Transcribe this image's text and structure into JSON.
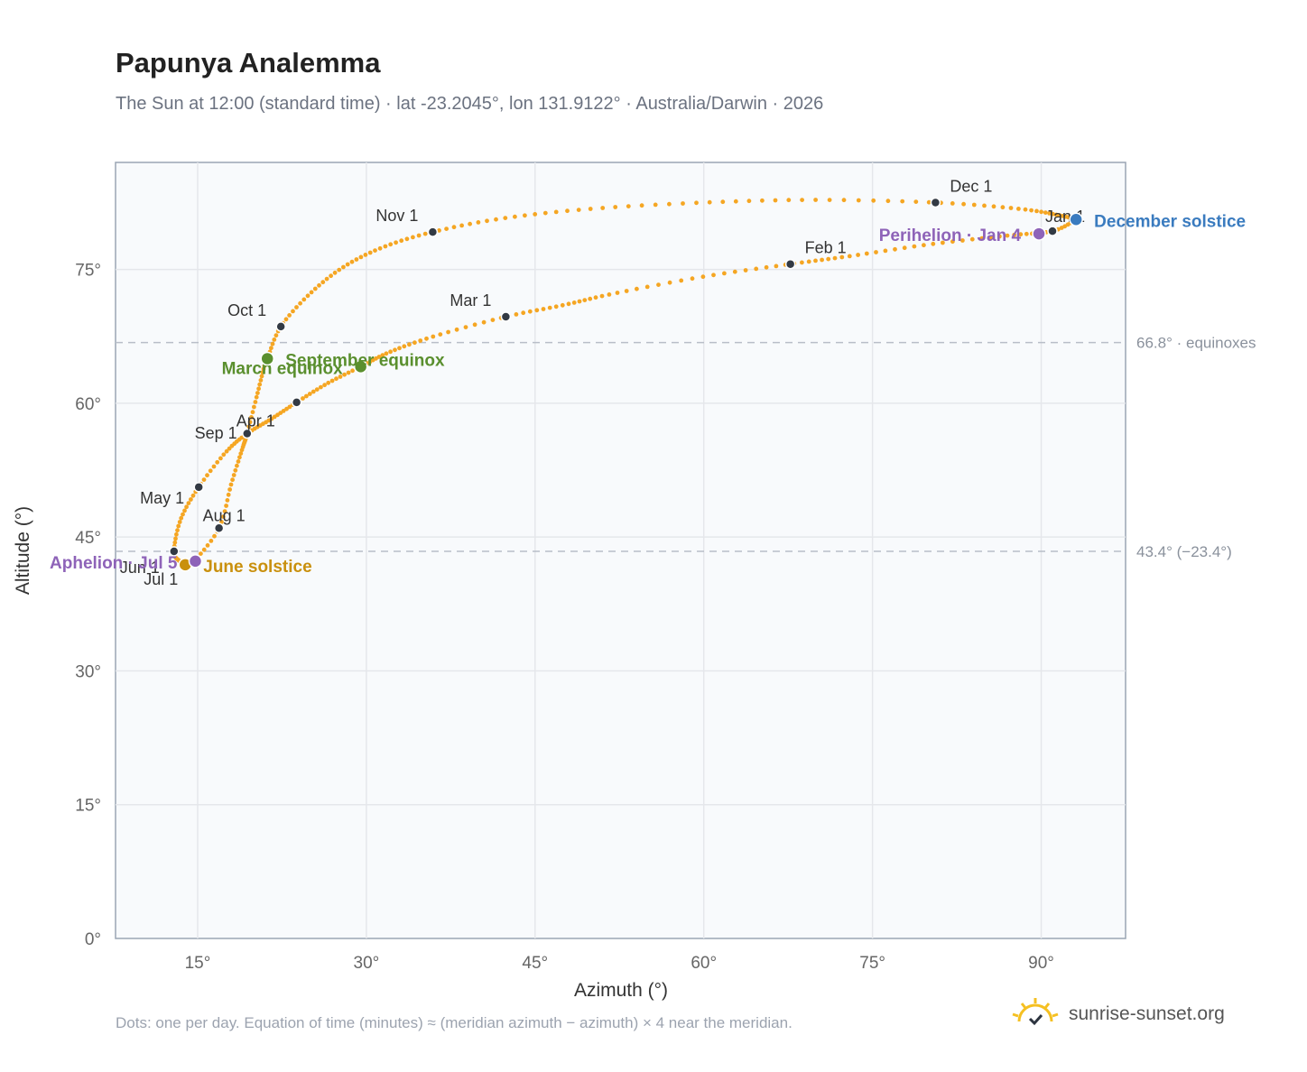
{
  "title": "Papunya Analemma",
  "subtitle": "The Sun at 12:00 (standard time) · lat -23.2045°, lon 131.9122° · Australia/Darwin · 2026",
  "footnote": "Dots: one per day. Equation of time (minutes) ≈ (meridian azimuth − azimuth) × 4 near the meridian.",
  "brand": {
    "name": "sunrise-sunset.org",
    "icon": "sun-logo-icon"
  },
  "colors": {
    "curve": "#f5a623",
    "month_marker": "#333a44",
    "equinox": "#5a8f2e",
    "june_solstice": "#c9900e",
    "december_solstice": "#3a7bbf",
    "aphelion_perihelion": "#8e63b8",
    "reference_line": "#b8bec8",
    "plot_bg": "#f8fafc",
    "grid": "#e5e7eb"
  },
  "chart_data": {
    "type": "scatter",
    "title": "Papunya Analemma",
    "xlabel": "Azimuth (°)",
    "ylabel": "Altitude (°)",
    "xlim": [
      7.7,
      97.5
    ],
    "ylim": [
      0,
      87
    ],
    "xticks": [
      15,
      30,
      45,
      60,
      75,
      90
    ],
    "xtick_labels": [
      "15°",
      "30°",
      "45°",
      "60°",
      "75°",
      "90°"
    ],
    "yticks": [
      0,
      15,
      30,
      45,
      60,
      75
    ],
    "ytick_labels": [
      "0°",
      "15°",
      "30°",
      "45°",
      "60°",
      "75°"
    ],
    "grid": true,
    "series": [
      {
        "type": "line",
        "note": "one dot per day",
        "points": [
          [
            93.1,
            80.6
          ],
          [
            91.0,
            79.3
          ],
          [
            87.0,
            78.8
          ],
          [
            80.0,
            77.8
          ],
          [
            73.0,
            76.5
          ],
          [
            67.7,
            75.6
          ],
          [
            60.0,
            74.2
          ],
          [
            52.0,
            72.3
          ],
          [
            47.5,
            71.0
          ],
          [
            42.4,
            69.7
          ],
          [
            36.0,
            67.5
          ],
          [
            32.0,
            65.7
          ],
          [
            29.5,
            64.1
          ],
          [
            26.5,
            62.2
          ],
          [
            23.8,
            60.1
          ],
          [
            21.5,
            58.2
          ],
          [
            19.4,
            56.6
          ],
          [
            17.5,
            54.5
          ],
          [
            15.1,
            50.6
          ],
          [
            13.5,
            47.0
          ],
          [
            12.9,
            43.4
          ],
          [
            13.4,
            42.3
          ],
          [
            13.9,
            41.9
          ],
          [
            14.6,
            42.2
          ],
          [
            16.9,
            46.0
          ],
          [
            18.0,
            51.0
          ],
          [
            19.0,
            55.0
          ],
          [
            19.4,
            56.6
          ],
          [
            20.3,
            61.0
          ],
          [
            21.0,
            64.5
          ],
          [
            21.2,
            65.0
          ],
          [
            22.4,
            68.6
          ],
          [
            25.0,
            72.3
          ],
          [
            28.0,
            75.3
          ],
          [
            31.5,
            77.5
          ],
          [
            35.9,
            79.2
          ],
          [
            42.0,
            80.7
          ],
          [
            50.0,
            81.8
          ],
          [
            60.0,
            82.5
          ],
          [
            70.0,
            82.8
          ],
          [
            80.6,
            82.5
          ],
          [
            88.0,
            81.8
          ],
          [
            91.5,
            81.1
          ],
          [
            93.1,
            80.6
          ]
        ]
      }
    ],
    "month_markers": [
      {
        "label": "Jan 1",
        "az": 91.0,
        "alt": 79.3
      },
      {
        "label": "Feb 1",
        "az": 67.7,
        "alt": 75.6
      },
      {
        "label": "Mar 1",
        "az": 42.4,
        "alt": 69.7
      },
      {
        "label": "Apr 1",
        "az": 19.4,
        "alt": 56.6
      },
      {
        "label": "May 1",
        "az": 15.1,
        "alt": 50.6
      },
      {
        "label": "Jun 1",
        "az": 12.9,
        "alt": 43.4
      },
      {
        "label": "Jul 1",
        "az": 13.9,
        "alt": 41.9
      },
      {
        "label": "Aug 1",
        "az": 16.9,
        "alt": 46.0
      },
      {
        "label": "Sep 1",
        "az": 23.8,
        "alt": 60.1
      },
      {
        "label": "Oct 1",
        "az": 22.4,
        "alt": 68.6
      },
      {
        "label": "Nov 1",
        "az": 35.9,
        "alt": 79.2
      },
      {
        "label": "Dec 1",
        "az": 80.6,
        "alt": 82.5
      }
    ],
    "events": [
      {
        "label": "December solstice",
        "az": 93.1,
        "alt": 80.6,
        "color_key": "december_solstice"
      },
      {
        "label": "Perihelion · Jan 4",
        "az": 89.8,
        "alt": 79.0,
        "color_key": "aphelion_perihelion"
      },
      {
        "label": "March equinox",
        "az": 29.5,
        "alt": 64.1,
        "color_key": "equinox"
      },
      {
        "label": "September equinox",
        "az": 21.2,
        "alt": 65.0,
        "color_key": "equinox"
      },
      {
        "label": "June solstice",
        "az": 13.9,
        "alt": 41.9,
        "color_key": "june_solstice"
      },
      {
        "label": "Aphelion · Jul 5",
        "az": 14.8,
        "alt": 42.3,
        "color_key": "aphelion_perihelion"
      }
    ],
    "reference_lines": [
      {
        "alt": 66.8,
        "label": "66.8° · equinoxes"
      },
      {
        "alt": 43.4,
        "label": "43.4° (−23.4°)"
      }
    ]
  }
}
